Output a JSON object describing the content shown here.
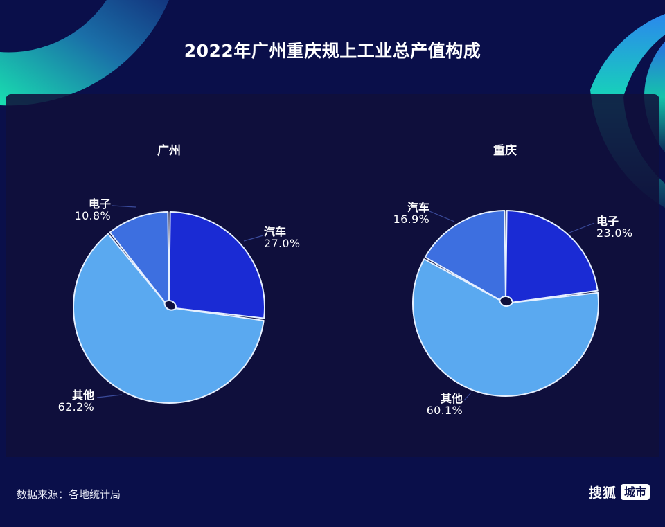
{
  "title": "2022年广州重庆规上工业总产值构成",
  "colors": {
    "background": "#0a0f4a",
    "panel": "#10103a",
    "slice_dark": "#1a2bd4",
    "slice_mid": "#3d6fe0",
    "slice_light": "#5aa9f0",
    "slice_stroke": "#e6f0ff"
  },
  "footer": {
    "source": "数据来源：各地统计局",
    "brand_name": "搜狐",
    "brand_tag": "城市"
  },
  "charts": [
    {
      "city": "广州",
      "labels": [
        {
          "name": "汽车",
          "value": "27.0%"
        },
        {
          "name": "其他",
          "value": "62.2%"
        },
        {
          "name": "电子",
          "value": "10.8%"
        }
      ]
    },
    {
      "city": "重庆",
      "labels": [
        {
          "name": "电子",
          "value": "23.0%"
        },
        {
          "name": "其他",
          "value": "60.1%"
        },
        {
          "name": "汽车",
          "value": "16.9%"
        }
      ]
    }
  ],
  "chart_data": [
    {
      "type": "pie",
      "title": "广州",
      "categories": [
        "汽车",
        "其他",
        "电子"
      ],
      "values": [
        27.0,
        62.2,
        10.8
      ],
      "unit": "%",
      "start_angle": "12 o'clock, clockwise",
      "colors": [
        "#1a2bd4",
        "#5aa9f0",
        "#3d6fe0"
      ]
    },
    {
      "type": "pie",
      "title": "重庆",
      "categories": [
        "电子",
        "其他",
        "汽车"
      ],
      "values": [
        23.0,
        60.1,
        16.9
      ],
      "unit": "%",
      "start_angle": "12 o'clock, clockwise",
      "colors": [
        "#1a2bd4",
        "#5aa9f0",
        "#3d6fe0"
      ]
    }
  ]
}
